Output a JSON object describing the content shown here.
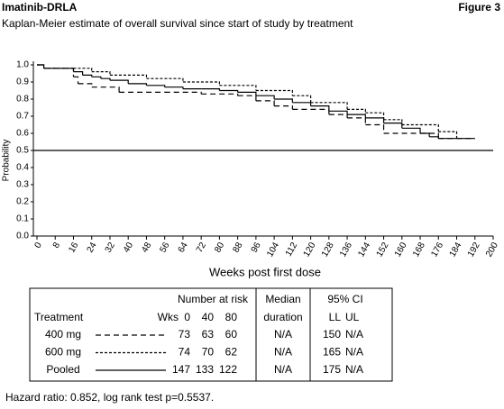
{
  "header": {
    "study": "Imatinib-DRLA",
    "figure": "Figure 3"
  },
  "chart_data": {
    "type": "step",
    "title": "Kaplan-Meier estimate of overall survival since start of study by treatment",
    "xlabel": "Weeks post first dose",
    "ylabel": "Probability",
    "xlim": [
      0,
      200
    ],
    "ylim": [
      0,
      1
    ],
    "xticks": [
      0,
      8,
      16,
      24,
      32,
      40,
      48,
      56,
      64,
      72,
      80,
      88,
      96,
      104,
      112,
      120,
      128,
      136,
      144,
      152,
      160,
      168,
      176,
      184,
      192,
      200
    ],
    "yticks": [
      {
        "value": 0,
        "label": "0.0"
      },
      0.1,
      0.2,
      0.3,
      0.4,
      0.5,
      0.6,
      0.7,
      0.8,
      0.9,
      {
        "value": 1,
        "label": "1.0"
      }
    ],
    "reference_line": 0.5,
    "series": [
      {
        "name": "400 mg",
        "color": "#000000",
        "line_style": "dashed",
        "x": [
          0,
          3,
          16,
          18,
          24,
          36,
          56,
          72,
          88,
          96,
          104,
          112,
          128,
          136,
          144,
          152,
          168,
          176,
          192
        ],
        "values": [
          1.0,
          0.98,
          0.93,
          0.89,
          0.87,
          0.84,
          0.84,
          0.83,
          0.82,
          0.79,
          0.76,
          0.74,
          0.71,
          0.69,
          0.65,
          0.6,
          0.6,
          0.57,
          0.57
        ],
        "at_risk": [
          73,
          63,
          60
        ],
        "median": "N/A",
        "ci_ll": 150,
        "ci_ul": "N/A"
      },
      {
        "name": "600 mg",
        "color": "#000000",
        "line_style": "dotted",
        "x": [
          0,
          3,
          16,
          24,
          32,
          48,
          64,
          80,
          96,
          112,
          120,
          136,
          144,
          152,
          160,
          176,
          184
        ],
        "values": [
          1.0,
          0.98,
          0.98,
          0.96,
          0.94,
          0.92,
          0.9,
          0.88,
          0.85,
          0.82,
          0.78,
          0.74,
          0.72,
          0.68,
          0.65,
          0.61,
          0.57
        ],
        "at_risk": [
          74,
          70,
          62
        ],
        "median": "N/A",
        "ci_ll": 165,
        "ci_ul": "N/A"
      },
      {
        "name": "Pooled",
        "color": "#000000",
        "line_style": "solid",
        "x": [
          0,
          3,
          16,
          20,
          24,
          28,
          32,
          40,
          48,
          56,
          64,
          72,
          80,
          88,
          96,
          104,
          112,
          120,
          128,
          136,
          144,
          152,
          160,
          168,
          172,
          176,
          192
        ],
        "values": [
          1.0,
          0.98,
          0.96,
          0.94,
          0.93,
          0.92,
          0.91,
          0.89,
          0.88,
          0.87,
          0.86,
          0.86,
          0.85,
          0.84,
          0.82,
          0.8,
          0.78,
          0.76,
          0.73,
          0.71,
          0.69,
          0.66,
          0.63,
          0.6,
          0.58,
          0.57,
          0.57
        ],
        "at_risk": [
          147,
          133,
          122
        ],
        "median": "N/A",
        "ci_ll": 175,
        "ci_ul": "N/A"
      }
    ],
    "table": {
      "at_risk_title": "Number at risk",
      "treatment": "Treatment",
      "weeks": "Wks",
      "at_risk_weeks": [
        0,
        40,
        80
      ],
      "median": [
        "Median",
        "duration"
      ],
      "ci": "95% CI",
      "ci_cols": [
        "LL",
        "UL"
      ]
    },
    "footnote": "Hazard ratio: 0.852, log rank test p=0.5537."
  }
}
